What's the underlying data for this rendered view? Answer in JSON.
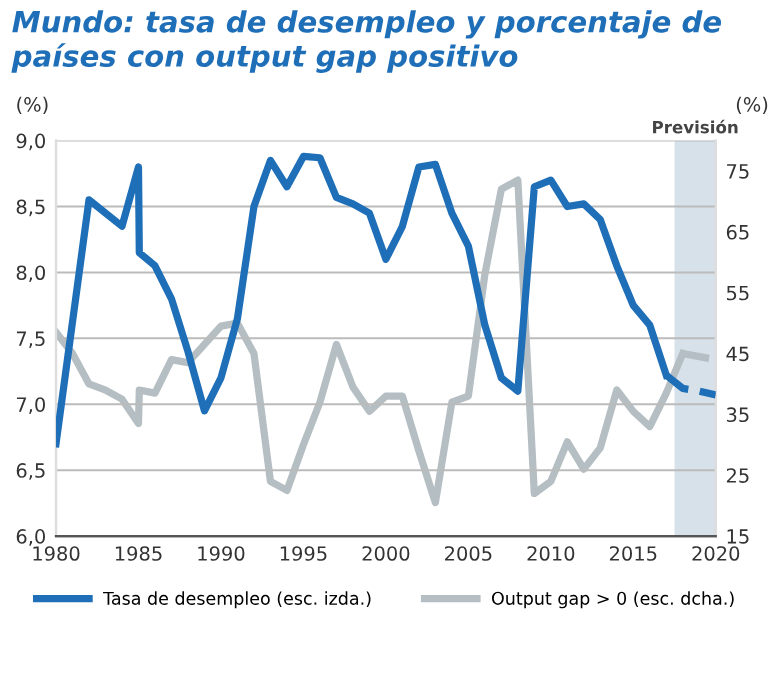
{
  "chart_data": {
    "type": "line",
    "title": "Mundo: tasa de desempleo y porcentaje de países con output gap positivo",
    "ylabel": "(%)",
    "y2label": "(%)",
    "series": [
      {
        "name": "Tasa de desempleo (esc. izda.)",
        "color": "#1f6fb8",
        "line_style": "solid",
        "x": [
          1980,
          1982,
          1984,
          1985,
          1985.05,
          1986,
          1987,
          1988,
          1989,
          1990,
          1991,
          1992,
          1993,
          1994,
          1995,
          1996,
          1997,
          1998,
          1999,
          2000,
          2001,
          2002,
          2003,
          2004,
          2005,
          2006,
          2007,
          2008,
          2009,
          2010,
          2011,
          2012,
          2013,
          2014,
          2015,
          2016,
          2017
        ],
        "values": [
          6.7,
          8.55,
          8.35,
          8.8,
          8.15,
          8.05,
          7.8,
          7.4,
          6.95,
          7.2,
          7.65,
          8.5,
          8.85,
          8.65,
          8.88,
          8.87,
          8.57,
          8.52,
          8.45,
          8.1,
          8.35,
          8.8,
          8.82,
          8.45,
          8.2,
          7.6,
          7.2,
          7.1,
          8.65,
          8.7,
          8.5,
          8.52,
          8.4,
          8.05,
          7.75,
          7.6,
          7.22
        ]
      },
      {
        "color": "#1f6fb8",
        "line_style": "dashed",
        "x": [
          2017,
          2018,
          2019,
          2020
        ],
        "values": [
          7.22,
          7.12,
          7.1,
          7.07
        ]
      },
      {
        "name": "Output gap > 0 (esc. dcha.)",
        "color": "#b4bec3",
        "line_style": "solid",
        "axis": "y2",
        "x": [
          1980,
          1981,
          1982,
          1983,
          1984,
          1985,
          1985.05,
          1986,
          1987,
          1988,
          1989,
          1990,
          1991,
          1992,
          1993,
          1994,
          1995,
          1996,
          1997,
          1998,
          1999,
          2000,
          2001,
          2002,
          2003,
          2004,
          2005,
          2006,
          2007,
          2008,
          2009,
          2010,
          2011,
          2012,
          2013,
          2014,
          2015,
          2016,
          2017,
          2018
        ],
        "values": [
          48.5,
          45,
          40,
          39,
          37.5,
          33.5,
          39,
          38.5,
          44,
          43.5,
          46.5,
          49.5,
          50,
          45,
          24,
          22.5,
          30,
          37,
          46.5,
          39.5,
          35.5,
          38,
          38,
          29,
          20.5,
          37,
          38,
          58,
          72,
          73.5,
          22,
          24,
          30.5,
          26,
          29.5,
          39,
          35.5,
          33,
          38.5,
          45
        ]
      },
      {
        "color": "#b4bec3",
        "line_style": "dashed",
        "axis": "y2",
        "x": [
          2018,
          2019,
          2020
        ],
        "values": [
          45,
          44.5,
          44
        ]
      }
    ],
    "bands": [
      {
        "axis": "x",
        "from": 2017.5,
        "to": 2020,
        "label": "Previsión",
        "color": "#d6e1ea"
      }
    ],
    "xlim": [
      1980,
      2020
    ],
    "xticks": [
      1980,
      1985,
      1990,
      1995,
      2000,
      2005,
      2010,
      2015,
      2020
    ],
    "ylim": [
      6,
      9
    ],
    "yticks": [
      {
        "value": 6,
        "label": "6,0"
      },
      {
        "value": 6.5,
        "label": "6,5"
      },
      {
        "value": 7,
        "label": "7,0"
      },
      {
        "value": 7.5,
        "label": "7,5"
      },
      {
        "value": 8,
        "label": "8,0"
      },
      {
        "value": 8.5,
        "label": "8,5"
      },
      {
        "value": 9,
        "label": "9,0"
      }
    ],
    "y2lim": [
      15,
      80
    ],
    "y2ticks": [
      15,
      25,
      35,
      45,
      55,
      65,
      75
    ],
    "grid": "y",
    "legend": "bottom",
    "marker": "none"
  }
}
